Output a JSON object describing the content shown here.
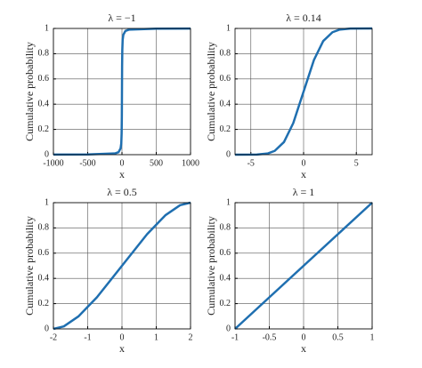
{
  "chart_data": [
    {
      "type": "line",
      "title": "λ = −1",
      "xlabel": "x",
      "ylabel": "Cumulative probability",
      "x": [
        -1000,
        -500,
        -100,
        -50,
        -20,
        -10,
        -5,
        -2,
        0,
        2,
        5,
        10,
        20,
        50,
        100,
        500,
        1000
      ],
      "values": [
        0.001,
        0.002,
        0.01,
        0.02,
        0.05,
        0.09,
        0.17,
        0.3,
        0.5,
        0.7,
        0.83,
        0.91,
        0.95,
        0.98,
        0.99,
        0.998,
        0.999
      ],
      "color": "#1f6fb0",
      "xlim": [
        -1000,
        1000
      ],
      "xticks": [
        -1000,
        -500,
        0,
        500,
        1000
      ],
      "ylim": [
        0,
        1
      ],
      "yticks": [
        0,
        0.2,
        0.4,
        0.6,
        0.8,
        1
      ],
      "grid": true
    },
    {
      "type": "line",
      "title": "λ = 0.14",
      "xlabel": "x",
      "ylabel": "Cumulative probability",
      "x": [
        -6.5,
        -4.43,
        -3.38,
        -2.74,
        -1.86,
        -0.98,
        0,
        0.98,
        1.86,
        2.74,
        3.38,
        4.43,
        6.5
      ],
      "values": [
        0,
        0.001,
        0.01,
        0.03,
        0.1,
        0.25,
        0.5,
        0.75,
        0.9,
        0.97,
        0.99,
        0.999,
        1
      ],
      "color": "#1f6fb0",
      "xlim": [
        -6.5,
        6.5
      ],
      "xticks": [
        -5,
        0,
        5
      ],
      "ylim": [
        0,
        1
      ],
      "yticks": [
        0,
        0.2,
        0.4,
        0.6,
        0.8,
        1
      ],
      "grid": true
    },
    {
      "type": "line",
      "title": "λ = 0.5",
      "xlabel": "x",
      "ylabel": "Cumulative probability",
      "x": [
        -2,
        -1.697,
        -1.265,
        -0.732,
        0,
        0.732,
        1.265,
        1.697,
        2
      ],
      "values": [
        0,
        0.02,
        0.1,
        0.25,
        0.5,
        0.75,
        0.9,
        0.98,
        1
      ],
      "color": "#1f6fb0",
      "xlim": [
        -2,
        2
      ],
      "xticks": [
        -2,
        -1,
        0,
        1,
        2
      ],
      "ylim": [
        0,
        1
      ],
      "yticks": [
        0,
        0.2,
        0.4,
        0.6,
        0.8,
        1
      ],
      "grid": true
    },
    {
      "type": "line",
      "title": "λ = 1",
      "xlabel": "x",
      "ylabel": "Cumulative probability",
      "x": [
        -1,
        1
      ],
      "values": [
        0,
        1
      ],
      "color": "#1f6fb0",
      "xlim": [
        -1,
        1
      ],
      "xticks": [
        -1,
        -0.5,
        0,
        0.5,
        1
      ],
      "ylim": [
        0,
        1
      ],
      "yticks": [
        0,
        0.2,
        0.4,
        0.6,
        0.8,
        1
      ],
      "grid": true
    }
  ]
}
